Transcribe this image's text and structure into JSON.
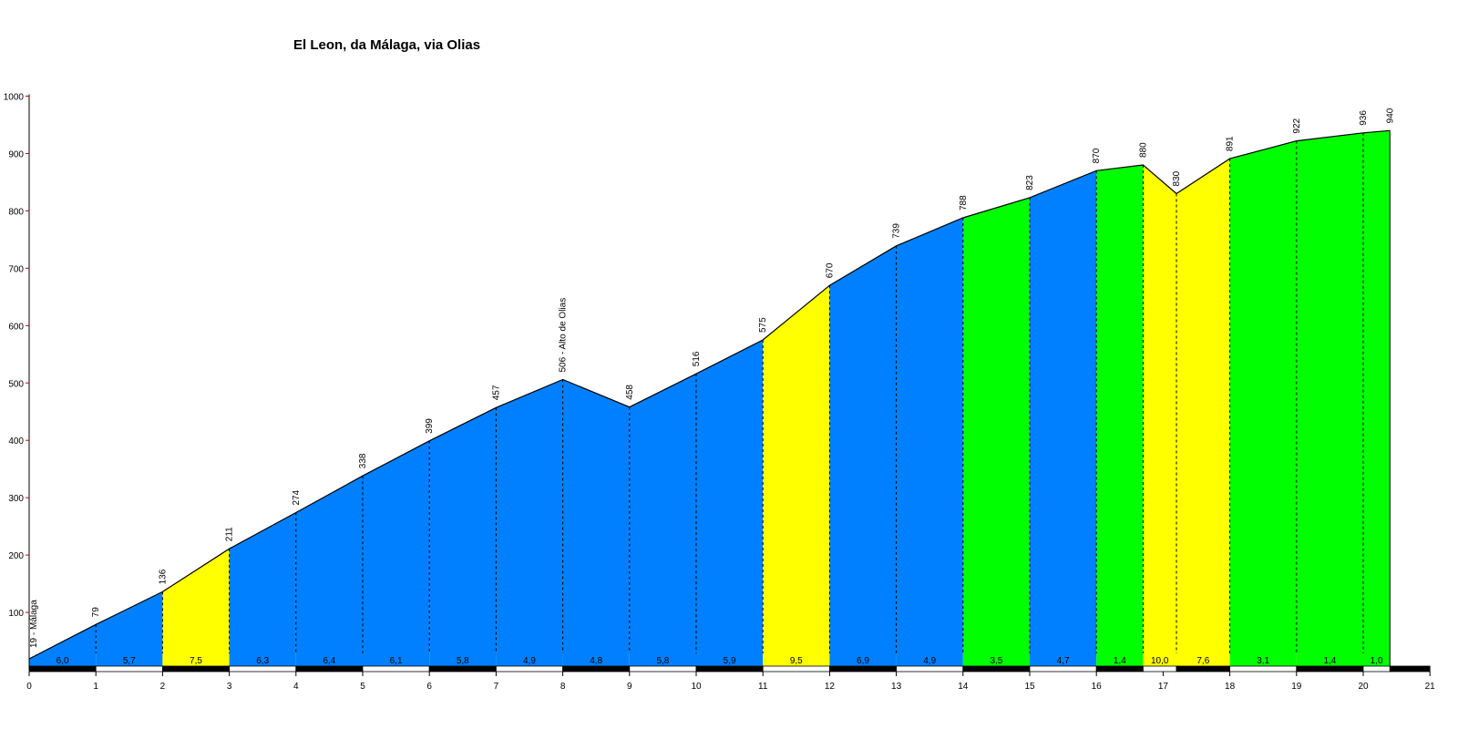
{
  "chart_data": {
    "type": "area",
    "title": "El Leon, da Málaga, via Olias",
    "xlabel": "",
    "ylabel": "",
    "xlim": [
      0,
      21
    ],
    "ylim": [
      19,
      1000
    ],
    "x_ticks": [
      "0",
      "1",
      "2",
      "3",
      "4",
      "5",
      "6",
      "7",
      "8",
      "9",
      "10",
      "11",
      "12",
      "13",
      "14",
      "15",
      "16",
      "17",
      "18",
      "19",
      "20",
      "21"
    ],
    "y_ticks": [
      "100",
      "200",
      "300",
      "400",
      "500",
      "600",
      "700",
      "800",
      "900",
      "1000"
    ],
    "profile": [
      {
        "km": 0,
        "alt": 19,
        "label": "19 - Málaga"
      },
      {
        "km": 1,
        "alt": 79,
        "label": "79"
      },
      {
        "km": 2,
        "alt": 136,
        "label": "136"
      },
      {
        "km": 3,
        "alt": 211,
        "label": "211"
      },
      {
        "km": 4,
        "alt": 274,
        "label": "274"
      },
      {
        "km": 5,
        "alt": 338,
        "label": "338"
      },
      {
        "km": 6,
        "alt": 399,
        "label": "399"
      },
      {
        "km": 7,
        "alt": 457,
        "label": "457"
      },
      {
        "km": 8,
        "alt": 506,
        "label": "506 - Alto de Olias"
      },
      {
        "km": 9,
        "alt": 458,
        "label": "458"
      },
      {
        "km": 10,
        "alt": 516,
        "label": "516"
      },
      {
        "km": 11,
        "alt": 575,
        "label": "575"
      },
      {
        "km": 12,
        "alt": 670,
        "label": "670"
      },
      {
        "km": 13,
        "alt": 739,
        "label": "739"
      },
      {
        "km": 14,
        "alt": 788,
        "label": "788"
      },
      {
        "km": 15,
        "alt": 823,
        "label": "823"
      },
      {
        "km": 16,
        "alt": 870,
        "label": "870"
      },
      {
        "km": 16.7,
        "alt": 880,
        "label": "880"
      },
      {
        "km": 17.2,
        "alt": 830,
        "label": "830"
      },
      {
        "km": 18,
        "alt": 891,
        "label": "891"
      },
      {
        "km": 19,
        "alt": 922,
        "label": "922"
      },
      {
        "km": 20,
        "alt": 936,
        "label": "936"
      },
      {
        "km": 20.4,
        "alt": 940,
        "label": "940"
      }
    ],
    "segments": [
      {
        "from": 0,
        "to": 1,
        "gradient": "6,0",
        "color": "#0080ff"
      },
      {
        "from": 1,
        "to": 2,
        "gradient": "5,7",
        "color": "#0080ff"
      },
      {
        "from": 2,
        "to": 3,
        "gradient": "7,5",
        "color": "#ffff00"
      },
      {
        "from": 3,
        "to": 4,
        "gradient": "6,3",
        "color": "#0080ff"
      },
      {
        "from": 4,
        "to": 5,
        "gradient": "6,4",
        "color": "#0080ff"
      },
      {
        "from": 5,
        "to": 6,
        "gradient": "6,1",
        "color": "#0080ff"
      },
      {
        "from": 6,
        "to": 7,
        "gradient": "5,8",
        "color": "#0080ff"
      },
      {
        "from": 7,
        "to": 8,
        "gradient": "4,9",
        "color": "#0080ff"
      },
      {
        "from": 8,
        "to": 9,
        "gradient": "4,8",
        "color": "#0080ff"
      },
      {
        "from": 9,
        "to": 10,
        "gradient": "5,8",
        "color": "#0080ff"
      },
      {
        "from": 10,
        "to": 11,
        "gradient": "5,9",
        "color": "#0080ff"
      },
      {
        "from": 11,
        "to": 12,
        "gradient": "9,5",
        "color": "#ffff00"
      },
      {
        "from": 12,
        "to": 13,
        "gradient": "6,9",
        "color": "#0080ff"
      },
      {
        "from": 13,
        "to": 14,
        "gradient": "4,9",
        "color": "#0080ff"
      },
      {
        "from": 14,
        "to": 15,
        "gradient": "3,5",
        "color": "#00ff00"
      },
      {
        "from": 15,
        "to": 16,
        "gradient": "4,7",
        "color": "#0080ff"
      },
      {
        "from": 16,
        "to": 16.7,
        "gradient": "1,4",
        "color": "#00ff00"
      },
      {
        "from": 16.7,
        "to": 17.2,
        "gradient": "10,0",
        "color": "#ffff00"
      },
      {
        "from": 17.2,
        "to": 18,
        "gradient": "7,6",
        "color": "#ffff00"
      },
      {
        "from": 18,
        "to": 19,
        "gradient": "3,1",
        "color": "#00ff00"
      },
      {
        "from": 19,
        "to": 20,
        "gradient": "1,4",
        "color": "#00ff00"
      },
      {
        "from": 20,
        "to": 20.4,
        "gradient": "1,0",
        "color": "#00ff00"
      }
    ],
    "grid": false,
    "legend": "none"
  }
}
